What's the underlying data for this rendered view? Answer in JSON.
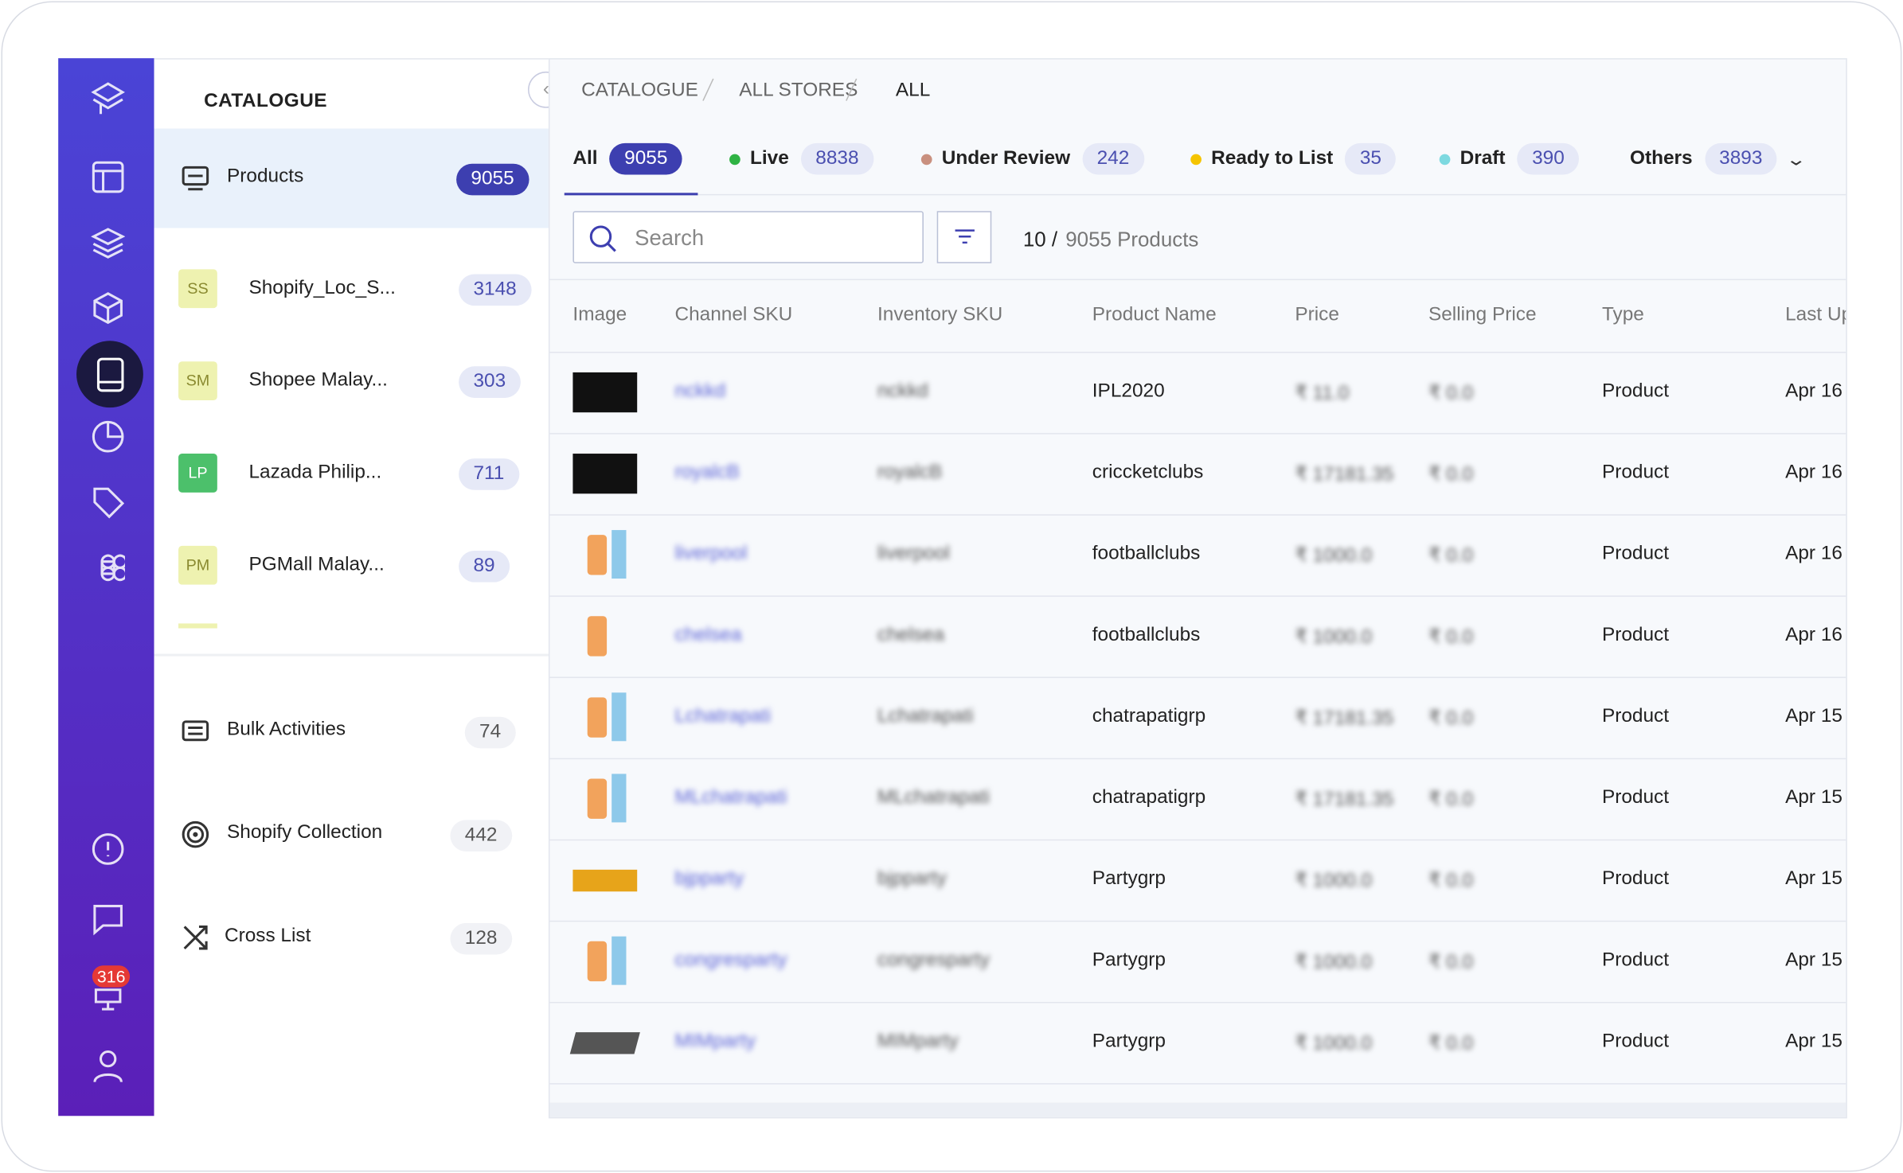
{
  "sidebar": {
    "badge": "316"
  },
  "catalogue": {
    "title": "CATALOGUE",
    "products": {
      "label": "Products",
      "count": "9055"
    },
    "stores": [
      {
        "abbr": "SS",
        "name": "Shopify_Loc_S...",
        "count": "3148"
      },
      {
        "abbr": "SM",
        "name": "Shopee Malay...",
        "count": "303"
      },
      {
        "abbr": "LP",
        "name": "Lazada Philip...",
        "count": "711"
      },
      {
        "abbr": "PM",
        "name": "PGMall Malay...",
        "count": "89"
      }
    ],
    "links": [
      {
        "label": "Bulk Activities",
        "count": "74"
      },
      {
        "label": "Shopify Collection",
        "count": "442"
      },
      {
        "label": "Cross List",
        "count": "128"
      }
    ]
  },
  "breadcrumb": [
    "CATALOGUE",
    "ALL STORES",
    "ALL"
  ],
  "tabs": [
    {
      "label": "All",
      "count": "9055"
    },
    {
      "label": "Live",
      "count": "8838"
    },
    {
      "label": "Under Review",
      "count": "242"
    },
    {
      "label": "Ready to List",
      "count": "35"
    },
    {
      "label": "Draft",
      "count": "390"
    },
    {
      "label": "Others",
      "count": "3893"
    }
  ],
  "search": {
    "placeholder": "Search",
    "shown": "10 /",
    "total": "9055 Products"
  },
  "table": {
    "headers": [
      "Image",
      "Channel SKU",
      "Inventory SKU",
      "Product Name",
      "Price",
      "Selling Price",
      "Type",
      "Last Updated"
    ],
    "rows": [
      [
        "nckkd",
        "nckkd",
        "IPL2020",
        "₹ 11.0",
        "₹ 0.0",
        "Product",
        "Apr 16"
      ],
      [
        "royalcB",
        "royalcB",
        "criccketclubs",
        "₹ 17181.35",
        "₹ 0.0",
        "Product",
        "Apr 16"
      ],
      [
        "liverpool",
        "liverpool",
        "footballclubs",
        "₹ 1000.0",
        "₹ 0.0",
        "Product",
        "Apr 16"
      ],
      [
        "chelsea",
        "chelsea",
        "footballclubs",
        "₹ 1000.0",
        "₹ 0.0",
        "Product",
        "Apr 16"
      ],
      [
        "Lchatrapati",
        "Lchatrapati",
        "chatrapatigrp",
        "₹ 17181.35",
        "₹ 0.0",
        "Product",
        "Apr 15"
      ],
      [
        "MLchatrapati",
        "MLchatrapati",
        "chatrapatigrp",
        "₹ 17181.35",
        "₹ 0.0",
        "Product",
        "Apr 15"
      ],
      [
        "bjpparty",
        "bjpparty",
        "Partygrp",
        "₹ 1000.0",
        "₹ 0.0",
        "Product",
        "Apr 15"
      ],
      [
        "congresparty",
        "congresparty",
        "Partygrp",
        "₹ 1000.0",
        "₹ 0.0",
        "Product",
        "Apr 15"
      ],
      [
        "MIMparty",
        "MIMparty",
        "Partygrp",
        "₹ 1000.0",
        "₹ 0.0",
        "Product",
        "Apr 15"
      ]
    ]
  }
}
